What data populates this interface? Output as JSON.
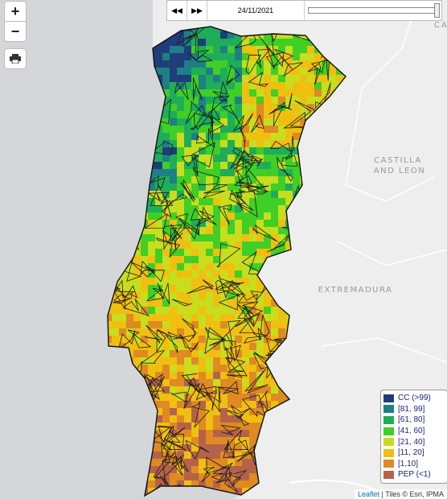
{
  "controls": {
    "zoom_in": "+",
    "zoom_out": "−"
  },
  "timeline": {
    "date": "24/11/2021"
  },
  "map_labels": {
    "cast": "CAST",
    "castilla": "CASTILLA",
    "and_leon": "AND LEON",
    "extremadura": "EXTREMADURA"
  },
  "legend": [
    {
      "label": "CC (>99)",
      "color": "#1f3d7a"
    },
    {
      "label": "[81, 99]",
      "color": "#1f7f84"
    },
    {
      "label": "[61, 80]",
      "color": "#1fad5a"
    },
    {
      "label": "[41, 60]",
      "color": "#3fcf26"
    },
    {
      "label": "[21, 40]",
      "color": "#c8dd1e"
    },
    {
      "label": "[11, 20]",
      "color": "#f0bf10"
    },
    {
      "label": "[1,10]",
      "color": "#df8a22"
    },
    {
      "label": "PEP (<1)",
      "color": "#b5624b"
    }
  ],
  "attribution": {
    "link": "Leaflet",
    "text": "| Tiles © Esri, IPMA"
  }
}
